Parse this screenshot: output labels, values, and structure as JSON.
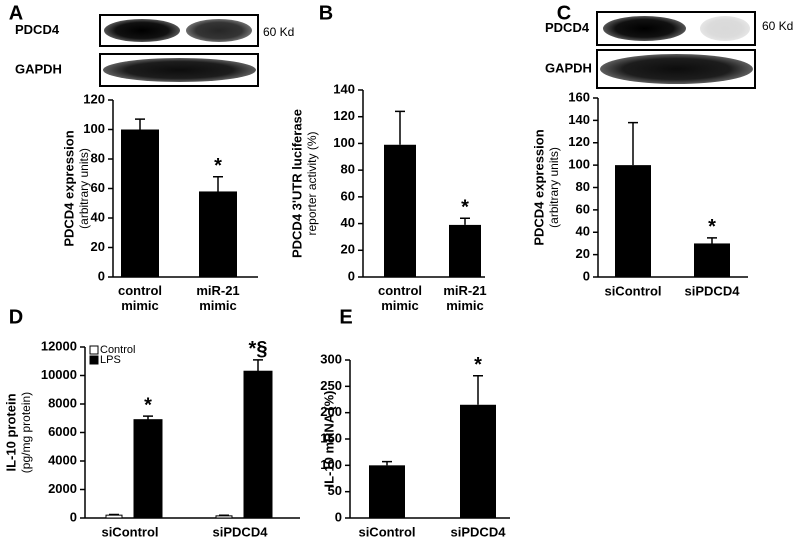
{
  "chart_data": [
    {
      "type": "bar",
      "panel": "A",
      "blot_labels": [
        "PDCD4",
        "GAPDH"
      ],
      "blot_size": "60 Kd",
      "ylabel": [
        "PDCD4 expression",
        "(arbitrary units)"
      ],
      "categories": [
        "control mimic",
        "miR-21 mimic"
      ],
      "values": [
        100,
        58
      ],
      "errors": [
        7,
        10
      ],
      "color": "#000000",
      "annotations": [
        {
          "category": 1,
          "text": "*"
        }
      ],
      "ylim": [
        0,
        120
      ],
      "yticks": [
        0,
        20,
        40,
        60,
        80,
        100,
        120
      ]
    },
    {
      "type": "bar",
      "panel": "B",
      "ylabel": [
        "PDCD4 3'UTR luciferase",
        "reporter activity  (%)"
      ],
      "categories": [
        "control mimic",
        "miR-21 mimic"
      ],
      "values": [
        99,
        39
      ],
      "errors": [
        25,
        5
      ],
      "color": "#000000",
      "annotations": [
        {
          "category": 1,
          "text": "*"
        }
      ],
      "ylim": [
        0,
        140
      ],
      "yticks": [
        0,
        20,
        40,
        60,
        80,
        100,
        120,
        140
      ]
    },
    {
      "type": "bar",
      "panel": "C",
      "blot_labels": [
        "PDCD4",
        "GAPDH"
      ],
      "blot_size": "60 Kd",
      "ylabel": [
        "PDCD4 expression",
        "(arbitrary units)"
      ],
      "categories": [
        "siControl",
        "siPDCD4"
      ],
      "values": [
        100,
        30
      ],
      "errors": [
        38,
        5
      ],
      "color": "#000000",
      "annotations": [
        {
          "category": 1,
          "text": "*"
        }
      ],
      "ylim": [
        0,
        160
      ],
      "yticks": [
        0,
        20,
        40,
        60,
        80,
        100,
        120,
        140,
        160
      ]
    },
    {
      "type": "grouped-bar",
      "panel": "D",
      "ylabel": [
        "IL-10 protein",
        "(pg/mg protein)"
      ],
      "categories": [
        "siControl",
        "siPDCD4"
      ],
      "series": [
        {
          "name": "Control",
          "color": "#ffffff",
          "values": [
            200,
            150
          ],
          "errors": [
            50,
            40
          ]
        },
        {
          "name": "LPS",
          "color": "#000000",
          "values": [
            6900,
            10300
          ],
          "errors": [
            250,
            800
          ]
        }
      ],
      "annotations": [
        {
          "series": 1,
          "category": 0,
          "text": "*"
        },
        {
          "series": 1,
          "category": 1,
          "text": "*§"
        }
      ],
      "legend": "upper-left",
      "ylim": [
        0,
        12000
      ],
      "yticks": [
        0,
        2000,
        4000,
        6000,
        8000,
        10000,
        12000
      ]
    },
    {
      "type": "bar",
      "panel": "E",
      "ylabel": [
        "IL-10 mRNA (%)"
      ],
      "categories": [
        "siControl",
        "siPDCD4"
      ],
      "values": [
        100,
        215
      ],
      "errors": [
        7,
        55
      ],
      "color": "#000000",
      "annotations": [
        {
          "category": 1,
          "text": "*"
        }
      ],
      "ylim": [
        0,
        300
      ],
      "yticks": [
        0,
        50,
        100,
        150,
        200,
        250,
        300
      ]
    }
  ]
}
